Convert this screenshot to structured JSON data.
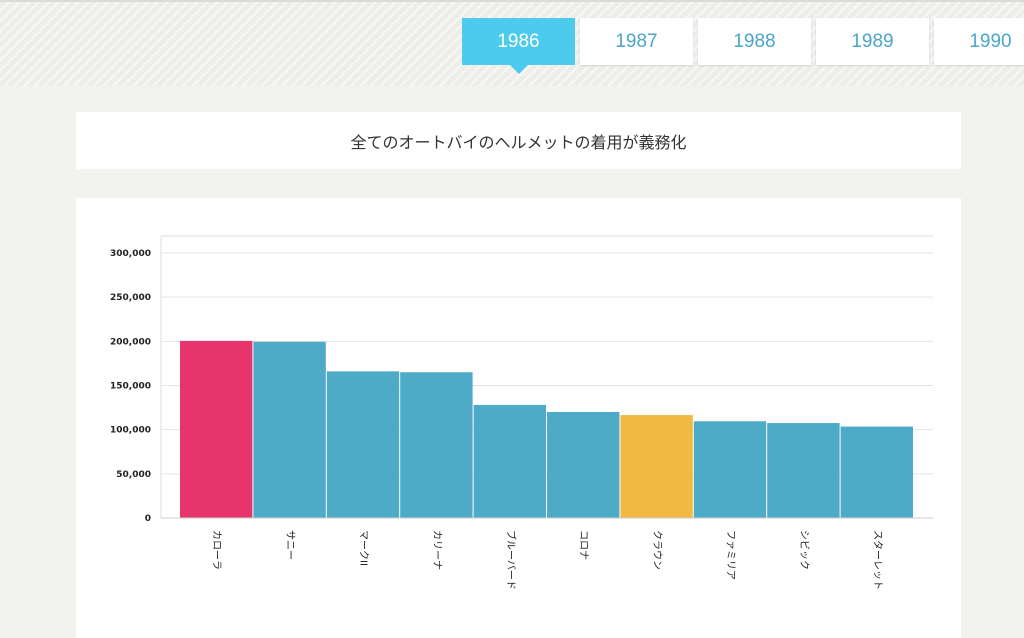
{
  "tabs": [
    {
      "label": "1986",
      "active": true
    },
    {
      "label": "1987",
      "active": false
    },
    {
      "label": "1988",
      "active": false
    },
    {
      "label": "1989",
      "active": false
    },
    {
      "label": "1990",
      "active": false
    }
  ],
  "event_text": "全てのオートバイのヘルメットの着用が義務化",
  "colors": {
    "accent_tab": "#4dcbee",
    "bar_default": "#4eabc7",
    "bar_highlight_1": "#e8346c",
    "bar_highlight_2": "#f2b942"
  },
  "chart_data": {
    "type": "bar",
    "categories": [
      "カローラ",
      "サニー",
      "マークII",
      "カリーナ",
      "ブルーバード",
      "コロナ",
      "クラウン",
      "ファミリア",
      "シビック",
      "スターレット"
    ],
    "values": [
      200500,
      199500,
      166000,
      165000,
      128000,
      120000,
      116500,
      109500,
      107500,
      103500
    ],
    "bar_colors": [
      "#e8346c",
      "#4eabc7",
      "#4eabc7",
      "#4eabc7",
      "#4eabc7",
      "#4eabc7",
      "#f2b942",
      "#4eabc7",
      "#4eabc7",
      "#4eabc7"
    ],
    "ylim": [
      0,
      300000
    ],
    "yticks": [
      "0",
      "50,000",
      "100,000",
      "150,000",
      "200,000",
      "250,000",
      "300,000"
    ],
    "grid": true
  }
}
